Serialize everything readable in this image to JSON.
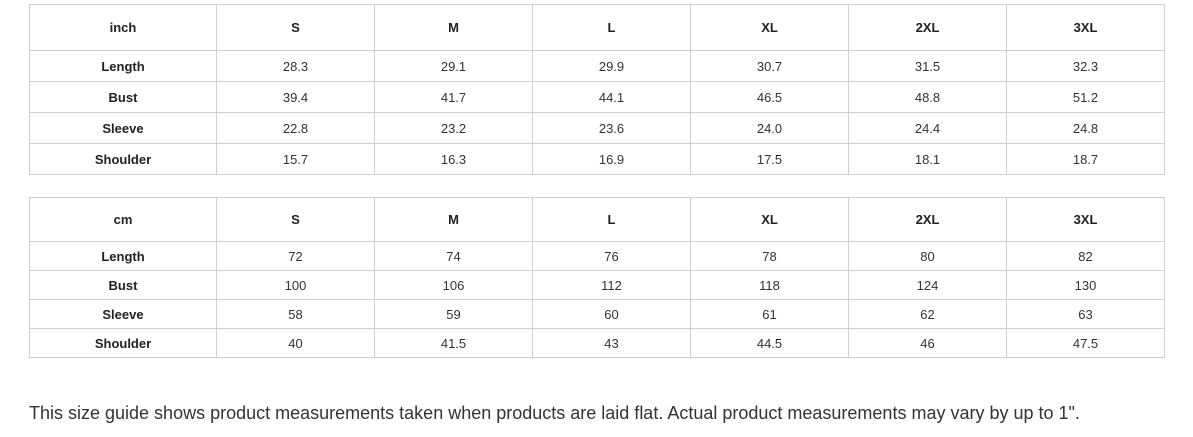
{
  "tables": [
    {
      "unit": "inch",
      "sizes": [
        "S",
        "M",
        "L",
        "XL",
        "2XL",
        "3XL"
      ],
      "rows": [
        {
          "label": "Length",
          "values": [
            "28.3",
            "29.1",
            "29.9",
            "30.7",
            "31.5",
            "32.3"
          ]
        },
        {
          "label": "Bust",
          "values": [
            "39.4",
            "41.7",
            "44.1",
            "46.5",
            "48.8",
            "51.2"
          ]
        },
        {
          "label": "Sleeve",
          "values": [
            "22.8",
            "23.2",
            "23.6",
            "24.0",
            "24.4",
            "24.8"
          ]
        },
        {
          "label": "Shoulder",
          "values": [
            "15.7",
            "16.3",
            "16.9",
            "17.5",
            "18.1",
            "18.7"
          ]
        }
      ]
    },
    {
      "unit": "cm",
      "sizes": [
        "S",
        "M",
        "L",
        "XL",
        "2XL",
        "3XL"
      ],
      "rows": [
        {
          "label": "Length",
          "values": [
            "72",
            "74",
            "76",
            "78",
            "80",
            "82"
          ]
        },
        {
          "label": "Bust",
          "values": [
            "100",
            "106",
            "112",
            "118",
            "124",
            "130"
          ]
        },
        {
          "label": "Sleeve",
          "values": [
            "58",
            "59",
            "60",
            "61",
            "62",
            "63"
          ]
        },
        {
          "label": "Shoulder",
          "values": [
            "40",
            "41.5",
            "43",
            "44.5",
            "46",
            "47.5"
          ]
        }
      ]
    }
  ],
  "note": "This size guide shows product measurements taken when products are laid flat. Actual product measurements may vary by up to 1\"."
}
